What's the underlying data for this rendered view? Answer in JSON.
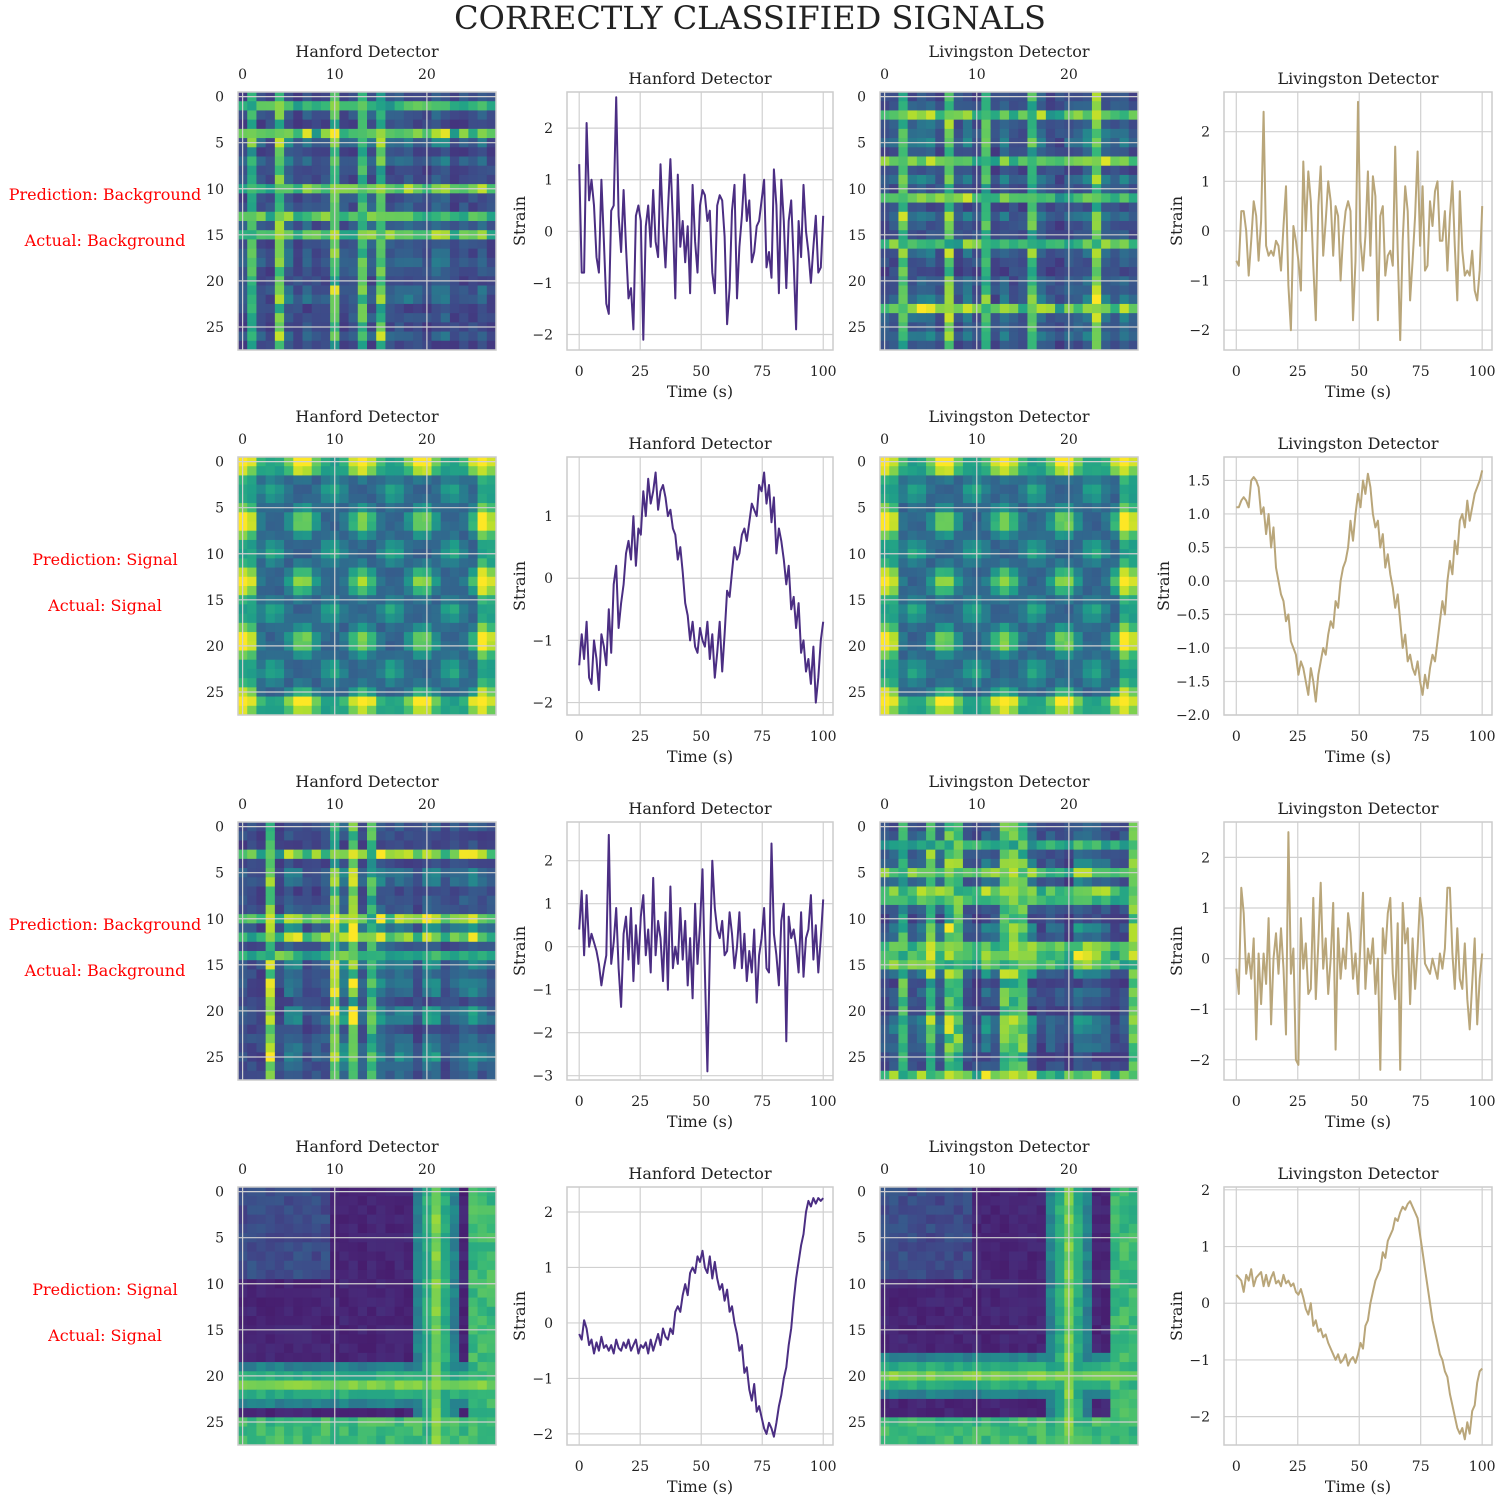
{
  "figure": {
    "title": "CORRECTLY CLASSIFIED SIGNALS",
    "label_color": "#ff0000",
    "series_colors": {
      "hanford": "#4b2e83",
      "livingston": "#b9a67a"
    },
    "colormap": "viridis"
  },
  "rows": [
    {
      "prediction": "Prediction: Background",
      "actual": "Actual: Background"
    },
    {
      "prediction": "Prediction: Signal",
      "actual": "Actual: Signal"
    },
    {
      "prediction": "Prediction: Background",
      "actual": "Actual: Background"
    },
    {
      "prediction": "Prediction: Signal",
      "actual": "Actual: Signal"
    }
  ],
  "chart_data": [
    {
      "type": "heatmap",
      "title": "Hanford Detector",
      "row": 0,
      "col": 0,
      "x_ticks": [
        0,
        10,
        20
      ],
      "y_ticks": [
        0,
        5,
        10,
        15,
        20,
        25
      ],
      "size": 28,
      "pattern": "noise",
      "seed": 11
    },
    {
      "type": "line",
      "title": "Hanford Detector",
      "row": 0,
      "col": 1,
      "xlabel": "Time (s)",
      "ylabel": "Strain",
      "x_ticks": [
        0,
        25,
        50,
        75,
        100
      ],
      "y_ticks": [
        -2,
        -1,
        0,
        1,
        2
      ],
      "ylim": [
        -2.3,
        2.7
      ],
      "color": "hanford",
      "values": [
        1.3,
        -0.8,
        -0.8,
        2.1,
        0.6,
        1.0,
        0.5,
        -0.5,
        -0.8,
        1.0,
        -0.2,
        -1.4,
        -1.6,
        0.4,
        0.5,
        2.6,
        0.3,
        -0.4,
        0.8,
        -0.3,
        -1.3,
        -1.1,
        -1.9,
        0.3,
        0.5,
        0.2,
        -2.1,
        0.1,
        0.5,
        -0.3,
        0.8,
        -0.2,
        -0.5,
        1.3,
        0.1,
        -0.7,
        0.4,
        1.4,
        0.2,
        -1.3,
        1.1,
        -0.3,
        0.2,
        -0.6,
        0.1,
        -1.2,
        0.9,
        -0.2,
        -0.8,
        0.5,
        0.8,
        0.7,
        0.2,
        0.4,
        -0.8,
        -1.2,
        0.5,
        0.7,
        0.6,
        -0.1,
        -1.8,
        -1.1,
        0.4,
        0.9,
        -1.3,
        -0.3,
        0.3,
        1.1,
        0.2,
        0.6,
        -0.6,
        -0.4,
        0.1,
        0.2,
        0.6,
        1.0,
        -0.7,
        -0.4,
        -0.9,
        1.2,
        0.5,
        -1.2,
        1.0,
        0.2,
        -1.1,
        0.2,
        0.6,
        -0.6,
        -1.9,
        0.2,
        -0.5,
        0.9,
        0.0,
        -0.4,
        -1.0,
        -0.3,
        0.3,
        -0.8,
        -0.7,
        0.3
      ]
    },
    {
      "type": "heatmap",
      "title": "Livingston Detector",
      "row": 0,
      "col": 2,
      "x_ticks": [
        0,
        10,
        20
      ],
      "y_ticks": [
        0,
        5,
        10,
        15,
        20,
        25
      ],
      "size": 28,
      "pattern": "noise",
      "seed": 23
    },
    {
      "type": "line",
      "title": "Livingston Detector",
      "row": 0,
      "col": 3,
      "xlabel": "Time (s)",
      "ylabel": "Strain",
      "x_ticks": [
        0,
        25,
        50,
        75,
        100
      ],
      "y_ticks": [
        -2,
        -1,
        0,
        1,
        2
      ],
      "ylim": [
        -2.4,
        2.8
      ],
      "color": "livingston",
      "values": [
        -0.6,
        -0.7,
        0.4,
        0.4,
        0.0,
        -0.9,
        -0.2,
        0.6,
        0.3,
        -0.6,
        0.2,
        2.4,
        -0.3,
        -0.5,
        -0.4,
        -0.5,
        -0.2,
        -0.3,
        -0.8,
        0.1,
        0.9,
        -1.1,
        -2.0,
        0.1,
        -0.2,
        -0.6,
        -1.2,
        1.4,
        0.0,
        1.2,
        0.6,
        -0.7,
        -1.8,
        0.5,
        1.3,
        -0.5,
        0.2,
        1.0,
        0.6,
        -0.5,
        0.5,
        0.3,
        -1.0,
        -0.1,
        0.4,
        0.6,
        0.4,
        -1.8,
        -0.6,
        2.6,
        -0.2,
        -0.8,
        -0.1,
        1.2,
        -0.5,
        1.1,
        0.7,
        -1.8,
        0.3,
        0.5,
        -0.9,
        -0.5,
        -0.4,
        -0.7,
        1.7,
        -0.4,
        -2.2,
        -0.2,
        0.9,
        0.4,
        -1.4,
        -0.6,
        0.3,
        1.6,
        -0.3,
        0.9,
        -0.8,
        -0.7,
        0.6,
        0.1,
        0.8,
        1.0,
        -0.2,
        -0.2,
        0.4,
        -0.8,
        0.3,
        1.0,
        -0.3,
        -1.4,
        0.8,
        -0.4,
        -0.9,
        -0.8,
        -0.9,
        -0.4,
        -1.2,
        -1.4,
        -0.8,
        0.5
      ]
    },
    {
      "type": "heatmap",
      "title": "Hanford Detector",
      "row": 1,
      "col": 0,
      "x_ticks": [
        0,
        10,
        20
      ],
      "y_ticks": [
        0,
        5,
        10,
        15,
        20,
        25
      ],
      "size": 28,
      "pattern": "periodic",
      "seed": 5
    },
    {
      "type": "line",
      "title": "Hanford Detector",
      "row": 1,
      "col": 1,
      "xlabel": "Time (s)",
      "ylabel": "Strain",
      "x_ticks": [
        0,
        25,
        50,
        75,
        100
      ],
      "y_ticks": [
        -2,
        -1,
        0,
        1
      ],
      "ylim": [
        -2.2,
        1.95
      ],
      "color": "hanford",
      "values": [
        -1.4,
        -0.9,
        -1.3,
        -0.7,
        -1.6,
        -1.7,
        -1.0,
        -1.3,
        -1.8,
        -0.9,
        -1.1,
        -1.4,
        -0.5,
        -1.2,
        -0.1,
        0.2,
        -0.8,
        -0.4,
        -0.1,
        0.4,
        0.6,
        0.3,
        1.0,
        0.2,
        0.8,
        0.7,
        1.4,
        1.0,
        1.6,
        1.2,
        1.4,
        1.7,
        1.1,
        1.4,
        1.5,
        1.3,
        1.0,
        1.1,
        0.8,
        0.7,
        0.3,
        0.5,
        0.1,
        -0.4,
        -0.6,
        -1.0,
        -0.7,
        -1.1,
        -1.2,
        -0.8,
        -1.0,
        -1.1,
        -0.7,
        -1.3,
        -0.9,
        -1.6,
        -1.2,
        -0.7,
        -1.5,
        -0.9,
        -0.2,
        -0.3,
        0.1,
        0.5,
        0.3,
        0.4,
        0.7,
        0.8,
        0.6,
        0.9,
        1.2,
        1.1,
        1.0,
        1.5,
        1.4,
        1.7,
        1.2,
        1.5,
        0.9,
        1.3,
        0.4,
        0.8,
        0.6,
        0.3,
        -0.1,
        0.2,
        -0.5,
        -0.3,
        -0.8,
        -0.4,
        -1.2,
        -1.0,
        -1.5,
        -1.3,
        -1.7,
        -1.1,
        -2.0,
        -1.6,
        -1.0,
        -0.7
      ]
    },
    {
      "type": "heatmap",
      "title": "Livingston Detector",
      "row": 1,
      "col": 2,
      "x_ticks": [
        0,
        10,
        20
      ],
      "y_ticks": [
        0,
        5,
        10,
        15,
        20,
        25
      ],
      "size": 28,
      "pattern": "periodic",
      "seed": 9
    },
    {
      "type": "line",
      "title": "Livingston Detector",
      "row": 1,
      "col": 3,
      "xlabel": "Time (s)",
      "ylabel": "Strain",
      "x_ticks": [
        0,
        25,
        50,
        75,
        100
      ],
      "y_ticks": [
        -2.0,
        -1.5,
        -1.0,
        -0.5,
        0.0,
        0.5,
        1.0,
        1.5
      ],
      "ylim": [
        -2.0,
        1.85
      ],
      "color": "livingston",
      "values": [
        1.1,
        1.1,
        1.2,
        1.25,
        1.2,
        1.1,
        1.5,
        1.55,
        1.5,
        1.4,
        1.0,
        1.1,
        0.7,
        1.0,
        0.5,
        0.8,
        0.2,
        0.0,
        -0.2,
        -0.3,
        -0.6,
        -0.5,
        -0.9,
        -1.0,
        -1.1,
        -1.4,
        -1.2,
        -1.3,
        -1.5,
        -1.7,
        -1.3,
        -1.5,
        -1.8,
        -1.4,
        -1.2,
        -1.0,
        -1.1,
        -0.8,
        -0.6,
        -0.7,
        -0.3,
        -0.4,
        0.0,
        0.2,
        0.3,
        0.5,
        0.9,
        0.6,
        1.0,
        1.3,
        1.1,
        1.5,
        1.3,
        1.6,
        1.4,
        1.0,
        0.8,
        0.9,
        0.5,
        0.7,
        0.2,
        0.4,
        0.1,
        -0.1,
        -0.4,
        -0.2,
        -0.6,
        -1.0,
        -0.8,
        -1.2,
        -1.1,
        -1.3,
        -1.4,
        -1.2,
        -1.5,
        -1.7,
        -1.4,
        -1.6,
        -1.3,
        -1.1,
        -1.2,
        -0.9,
        -0.6,
        -0.3,
        -0.5,
        0.0,
        0.3,
        0.1,
        0.6,
        0.4,
        0.9,
        1.0,
        0.8,
        1.2,
        0.9,
        1.1,
        1.3,
        1.4,
        1.5,
        1.65
      ]
    },
    {
      "type": "heatmap",
      "title": "Hanford Detector",
      "row": 2,
      "col": 0,
      "x_ticks": [
        0,
        10,
        20
      ],
      "y_ticks": [
        0,
        5,
        10,
        15,
        20,
        25
      ],
      "size": 28,
      "pattern": "noise",
      "seed": 31
    },
    {
      "type": "line",
      "title": "Hanford Detector",
      "row": 2,
      "col": 1,
      "xlabel": "Time (s)",
      "ylabel": "Strain",
      "x_ticks": [
        0,
        25,
        50,
        75,
        100
      ],
      "y_ticks": [
        -3,
        -2,
        -1,
        0,
        1,
        2
      ],
      "ylim": [
        -3.1,
        2.9
      ],
      "color": "hanford",
      "values": [
        0.4,
        1.3,
        -0.2,
        1.2,
        0.0,
        0.3,
        0.1,
        -0.1,
        -0.4,
        -0.9,
        -0.5,
        -0.2,
        2.6,
        -0.4,
        0.1,
        0.9,
        -0.5,
        -1.4,
        0.3,
        0.7,
        -0.3,
        0.9,
        -0.8,
        0.5,
        -0.4,
        0.7,
        1.2,
        -0.2,
        0.4,
        -0.6,
        1.6,
        -0.2,
        0.6,
        0.2,
        -0.8,
        0.8,
        -1.0,
        1.4,
        -0.5,
        0.0,
        -0.4,
        0.9,
        -0.3,
        0.6,
        -0.9,
        0.2,
        -1.2,
        1.0,
        -0.4,
        0.5,
        1.8,
        -0.6,
        -2.9,
        -0.2,
        2.0,
        0.9,
        0.4,
        0.2,
        0.6,
        -0.2,
        -0.1,
        0.8,
        0.3,
        -0.5,
        0.0,
        0.8,
        -0.5,
        0.3,
        -0.8,
        -0.1,
        -0.6,
        0.4,
        -1.3,
        -0.2,
        0.2,
        0.9,
        -0.5,
        -0.6,
        2.4,
        0.3,
        -0.2,
        -0.9,
        0.6,
        1.0,
        -2.2,
        0.7,
        0.2,
        0.4,
        0.0,
        -0.6,
        0.8,
        -0.7,
        0.2,
        0.4,
        1.2,
        -0.3,
        0.5,
        -0.6,
        0.2,
        1.1
      ]
    },
    {
      "type": "heatmap",
      "title": "Livingston Detector",
      "row": 2,
      "col": 2,
      "x_ticks": [
        0,
        10,
        20
      ],
      "y_ticks": [
        0,
        5,
        10,
        15,
        20,
        25
      ],
      "size": 28,
      "pattern": "noise",
      "seed": 47
    },
    {
      "type": "line",
      "title": "Livingston Detector",
      "row": 2,
      "col": 3,
      "xlabel": "Time (s)",
      "ylabel": "Strain",
      "x_ticks": [
        0,
        25,
        50,
        75,
        100
      ],
      "y_ticks": [
        -2,
        -1,
        0,
        1,
        2
      ],
      "ylim": [
        -2.4,
        2.7
      ],
      "color": "livingston",
      "values": [
        -0.2,
        -0.7,
        1.4,
        0.9,
        -0.3,
        0.1,
        -0.4,
        0.4,
        -1.6,
        0.1,
        -0.9,
        0.1,
        -0.5,
        0.8,
        -1.3,
        0.0,
        0.5,
        -0.3,
        0.6,
        -0.2,
        -1.5,
        2.5,
        -0.3,
        0.2,
        -2.0,
        -2.1,
        0.8,
        -0.2,
        0.3,
        -0.7,
        -0.6,
        1.2,
        -0.8,
        0.3,
        1.5,
        -0.2,
        0.4,
        -0.7,
        0.0,
        1.1,
        -1.8,
        0.6,
        -0.4,
        0.2,
        -0.2,
        0.9,
        0.5,
        -0.4,
        0.1,
        -0.7,
        0.3,
        1.3,
        -0.6,
        0.2,
        -0.1,
        0.4,
        -0.7,
        0.0,
        -2.2,
        0.6,
        0.1,
        0.9,
        1.2,
        -0.3,
        -0.8,
        0.7,
        -2.2,
        1.1,
        0.3,
        0.6,
        -0.9,
        0.4,
        -0.6,
        0.2,
        1.2,
        0.8,
        -0.1,
        -0.2,
        -0.3,
        0.0,
        -0.2,
        -0.4,
        0.1,
        -0.2,
        0.2,
        1.4,
        1.4,
        0.1,
        -0.6,
        0.6,
        -0.4,
        -0.6,
        0.3,
        -0.8,
        -1.4,
        -0.5,
        0.4,
        -1.3,
        -0.4,
        0.1
      ]
    },
    {
      "type": "heatmap",
      "title": "Hanford Detector",
      "row": 3,
      "col": 0,
      "x_ticks": [
        0,
        10,
        20
      ],
      "y_ticks": [
        0,
        5,
        10,
        15,
        20,
        25
      ],
      "size": 28,
      "pattern": "cross",
      "cross": [
        21,
        26
      ],
      "seed": 3
    },
    {
      "type": "line",
      "title": "Hanford Detector",
      "row": 3,
      "col": 1,
      "xlabel": "Time (s)",
      "ylabel": "Strain",
      "x_ticks": [
        0,
        25,
        50,
        75,
        100
      ],
      "y_ticks": [
        -2,
        -1,
        0,
        1,
        2
      ],
      "ylim": [
        -2.2,
        2.45
      ],
      "color": "hanford",
      "values": [
        -0.2,
        -0.3,
        0.05,
        -0.1,
        -0.4,
        -0.3,
        -0.55,
        -0.35,
        -0.5,
        -0.25,
        -0.45,
        -0.4,
        -0.5,
        -0.4,
        -0.55,
        -0.3,
        -0.45,
        -0.5,
        -0.35,
        -0.45,
        -0.3,
        -0.5,
        -0.4,
        -0.3,
        -0.55,
        -0.4,
        -0.45,
        -0.35,
        -0.55,
        -0.3,
        -0.5,
        -0.35,
        -0.2,
        -0.4,
        -0.1,
        -0.25,
        -0.3,
        -0.1,
        -0.2,
        0.2,
        0.3,
        0.2,
        0.5,
        0.7,
        0.5,
        0.9,
        1.0,
        0.9,
        1.2,
        1.1,
        1.3,
        1.0,
        0.9,
        1.2,
        0.8,
        1.1,
        0.8,
        0.6,
        0.7,
        0.4,
        0.6,
        0.2,
        0.3,
        0.0,
        -0.2,
        -0.5,
        -0.4,
        -0.9,
        -0.8,
        -1.2,
        -1.4,
        -1.1,
        -1.6,
        -1.5,
        -1.7,
        -1.9,
        -2.0,
        -1.8,
        -1.9,
        -2.05,
        -1.8,
        -1.5,
        -1.3,
        -1.0,
        -0.8,
        -0.4,
        -0.1,
        0.4,
        0.8,
        1.1,
        1.4,
        1.6,
        2.0,
        2.2,
        2.1,
        2.25,
        2.15,
        2.25,
        2.2,
        2.25
      ]
    },
    {
      "type": "heatmap",
      "title": "Livingston Detector",
      "row": 3,
      "col": 2,
      "x_ticks": [
        0,
        10,
        20
      ],
      "y_ticks": [
        0,
        5,
        10,
        15,
        20,
        25
      ],
      "size": 28,
      "pattern": "cross",
      "cross": [
        20,
        26
      ],
      "seed": 7
    },
    {
      "type": "line",
      "title": "Livingston Detector",
      "row": 3,
      "col": 3,
      "xlabel": "Time (s)",
      "ylabel": "Strain",
      "x_ticks": [
        0,
        25,
        50,
        75,
        100
      ],
      "y_ticks": [
        -2,
        -1,
        0,
        1,
        2
      ],
      "ylim": [
        -2.5,
        2.05
      ],
      "color": "livingston",
      "values": [
        0.5,
        0.45,
        0.4,
        0.2,
        0.5,
        0.4,
        0.6,
        0.3,
        0.45,
        0.5,
        0.55,
        0.3,
        0.5,
        0.3,
        0.45,
        0.55,
        0.35,
        0.4,
        0.3,
        0.5,
        0.35,
        0.4,
        0.3,
        0.35,
        0.2,
        0.15,
        0.25,
        0.1,
        -0.1,
        -0.2,
        0.0,
        -0.4,
        -0.3,
        -0.5,
        -0.45,
        -0.6,
        -0.55,
        -0.7,
        -0.8,
        -0.9,
        -1.0,
        -0.9,
        -1.05,
        -1.0,
        -0.9,
        -1.1,
        -1.0,
        -0.95,
        -1.05,
        -0.9,
        -0.7,
        -0.8,
        -0.4,
        -0.3,
        0.0,
        0.2,
        0.4,
        0.5,
        0.6,
        0.9,
        0.8,
        1.1,
        1.2,
        1.3,
        1.5,
        1.45,
        1.6,
        1.7,
        1.65,
        1.75,
        1.8,
        1.7,
        1.6,
        1.5,
        1.2,
        0.9,
        0.6,
        0.3,
        0.0,
        -0.3,
        -0.5,
        -0.7,
        -0.9,
        -1.0,
        -1.2,
        -1.3,
        -1.6,
        -1.8,
        -2.0,
        -2.2,
        -2.3,
        -2.2,
        -2.4,
        -2.1,
        -2.3,
        -1.9,
        -1.8,
        -1.4,
        -1.2,
        -1.15
      ]
    }
  ]
}
